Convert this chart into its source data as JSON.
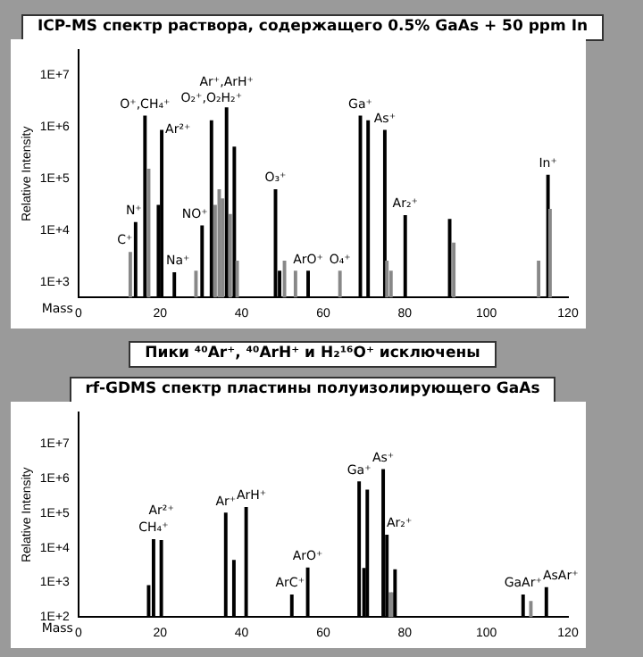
{
  "chart_data": [
    {
      "type": "bar",
      "title": "ICP-MS спектр раствора, содержащего 0.5% GaAs + 50 ppm In",
      "xlabel": "Mass",
      "ylabel": "Relative Intensity",
      "x": [
        12.7,
        14.0,
        16.3,
        17.2,
        19.6,
        20.4,
        23.5,
        28.8,
        30.3,
        32.6,
        33.5,
        34.5,
        35.3,
        36.3,
        37.2,
        38.2,
        38.9,
        48.3,
        49.3,
        50.5,
        53.2,
        56.3,
        64.1,
        69.1,
        71.0,
        75.1,
        75.6,
        76.6,
        80.1,
        91.0,
        92.0,
        112.8,
        115.1,
        115.6
      ],
      "values": [
        3700,
        14000,
        1600000,
        150000,
        30000,
        850000,
        1500,
        1600,
        12000,
        1300000,
        30000,
        60000,
        40000,
        2300000,
        20000,
        400000,
        2500,
        60000,
        1600,
        2500,
        1600,
        1600,
        1600,
        1600000,
        1300000,
        850000,
        2500,
        1600,
        19000,
        16000,
        5600,
        2500,
        115000,
        25000
      ],
      "colors": [
        "#888888",
        "#000000",
        "#000000",
        "#888888",
        "#000000",
        "#000000",
        "#000000",
        "#888888",
        "#000000",
        "#000000",
        "#888888",
        "#888888",
        "#888888",
        "#000000",
        "#888888",
        "#000000",
        "#888888",
        "#000000",
        "#000000",
        "#888888",
        "#888888",
        "#000000",
        "#888888",
        "#000000",
        "#000000",
        "#000000",
        "#888888",
        "#888888",
        "#000000",
        "#000000",
        "#888888",
        "#888888",
        "#000000",
        "#888888"
      ],
      "xlim": [
        0,
        120
      ],
      "xticks": [
        0,
        20,
        40,
        60,
        80,
        100,
        120
      ],
      "ylim": [
        500,
        30000000
      ],
      "yticks": [
        {
          "value": 1000,
          "label": "1E+3"
        },
        {
          "value": 10000,
          "label": "1E+4"
        },
        {
          "value": 100000,
          "label": "1E+5"
        },
        {
          "value": 1000000,
          "label": "1E+6"
        },
        {
          "value": 10000000,
          "label": "1E+7"
        }
      ],
      "log": true,
      "annotations": [
        {
          "text": "C⁺",
          "x": 12.7,
          "y": 3700
        },
        {
          "text": "N⁺",
          "x": 14.0,
          "y": 14000
        },
        {
          "text": "O⁺,CH₄⁺",
          "x": 16.3,
          "y": 1600000
        },
        {
          "text": "Ar²⁺",
          "x": 20.4,
          "y": 850000
        },
        {
          "text": "Na⁺",
          "x": 23.5,
          "y": 1500
        },
        {
          "text": "NO⁺",
          "x": 30.3,
          "y": 12000
        },
        {
          "text": "O₂⁺,O₂H₂⁺",
          "x": 32.6,
          "y": 1300000
        },
        {
          "text": "Ar⁺,ArH⁺",
          "x": 36.3,
          "y": 2300000
        },
        {
          "text": "O₃⁺",
          "x": 48.3,
          "y": 60000
        },
        {
          "text": "ArO⁺",
          "x": 56.3,
          "y": 1600
        },
        {
          "text": "O₄⁺",
          "x": 64.1,
          "y": 1600
        },
        {
          "text": "Ga⁺",
          "x": 69.1,
          "y": 1600000
        },
        {
          "text": "As⁺",
          "x": 75.1,
          "y": 850000
        },
        {
          "text": "Ar₂⁺",
          "x": 80.1,
          "y": 19000
        },
        {
          "text": "In⁺",
          "x": 115.1,
          "y": 115000
        },
        "Пики ⁴⁰Ar⁺, ⁴⁰ArH⁺ и H₂¹⁶O⁺ исключены"
      ]
    },
    {
      "type": "bar",
      "title": "rf-GDMS спектр пластины полуизолирующего GaAs",
      "xlabel": "Mass",
      "ylabel": "Relative Intensity",
      "x": [
        17.2,
        18.4,
        20.3,
        36.1,
        38.1,
        41.1,
        52.3,
        56.2,
        68.8,
        70.0,
        70.8,
        74.7,
        75.6,
        76.4,
        77.1,
        77.6,
        109.0,
        110.9,
        114.7
      ],
      "values": [
        800,
        17000,
        16000,
        100000,
        4300,
        145000,
        430,
        2600,
        800000,
        2500,
        460000,
        1800000,
        23000,
        500,
        500,
        2300,
        430,
        280,
        700
      ],
      "colors": [
        "#000000",
        "#000000",
        "#000000",
        "#000000",
        "#000000",
        "#000000",
        "#000000",
        "#000000",
        "#000000",
        "#000000",
        "#000000",
        "#000000",
        "#000000",
        "#888888",
        "#888888",
        "#000000",
        "#000000",
        "#888888",
        "#000000"
      ],
      "xlim": [
        0,
        120
      ],
      "xticks": [
        0,
        20,
        40,
        60,
        80,
        100,
        120
      ],
      "ylim": [
        100,
        80000000
      ],
      "yticks": [
        {
          "value": 100,
          "label": "1E+2"
        },
        {
          "value": 1000,
          "label": "1E+3"
        },
        {
          "value": 10000,
          "label": "1E+4"
        },
        {
          "value": 100000,
          "label": "1E+5"
        },
        {
          "value": 1000000,
          "label": "1E+6"
        },
        {
          "value": 10000000,
          "label": "1E+7"
        }
      ],
      "log": true,
      "annotations": [
        {
          "text": "CH₄⁺",
          "x": 18.4,
          "y": 17000
        },
        {
          "text": "Ar²⁺",
          "x": 20.3,
          "y": 16000
        },
        {
          "text": "Ar⁺",
          "x": 36.1,
          "y": 100000
        },
        {
          "text": "ArH⁺",
          "x": 41.1,
          "y": 145000
        },
        {
          "text": "ArC⁺",
          "x": 52.3,
          "y": 430
        },
        {
          "text": "ArO⁺",
          "x": 56.2,
          "y": 2600
        },
        {
          "text": "Ga⁺",
          "x": 68.8,
          "y": 800000
        },
        {
          "text": "As⁺",
          "x": 74.7,
          "y": 1800000
        },
        {
          "text": "Ar₂⁺",
          "x": 75.6,
          "y": 23000
        },
        {
          "text": "GaAr⁺",
          "x": 109.0,
          "y": 430
        },
        {
          "text": "AsAr⁺",
          "x": 114.7,
          "y": 700
        }
      ]
    }
  ]
}
